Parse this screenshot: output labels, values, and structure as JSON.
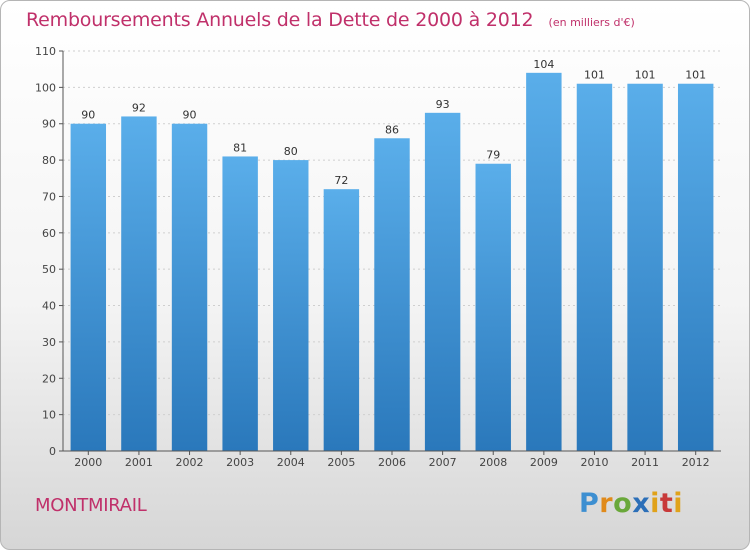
{
  "chart_data": {
    "type": "bar",
    "title": "Remboursements Annuels de la Dette de 2000 à 2012",
    "unit_note": "(en milliers d'€)",
    "categories": [
      "2000",
      "2001",
      "2002",
      "2003",
      "2004",
      "2005",
      "2006",
      "2007",
      "2008",
      "2009",
      "2010",
      "2011",
      "2012"
    ],
    "values": [
      90,
      92,
      90,
      81,
      80,
      72,
      86,
      93,
      79,
      104,
      101,
      101,
      101
    ],
    "ylim": [
      0,
      110
    ],
    "yticks": [
      0,
      10,
      20,
      30,
      40,
      50,
      60,
      70,
      80,
      90,
      100,
      110
    ],
    "xlabel": "",
    "ylabel": "",
    "grid": true
  },
  "footer": {
    "commune": "MONTMIRAIL",
    "logo": {
      "p": "P",
      "r": "r",
      "o": "o",
      "x": "x",
      "i": "i",
      "t": "t",
      "i2": "i"
    }
  },
  "colors": {
    "accent": "#c0306a",
    "bar_top": "#5aaeea",
    "bar_bottom": "#2a78bb"
  }
}
